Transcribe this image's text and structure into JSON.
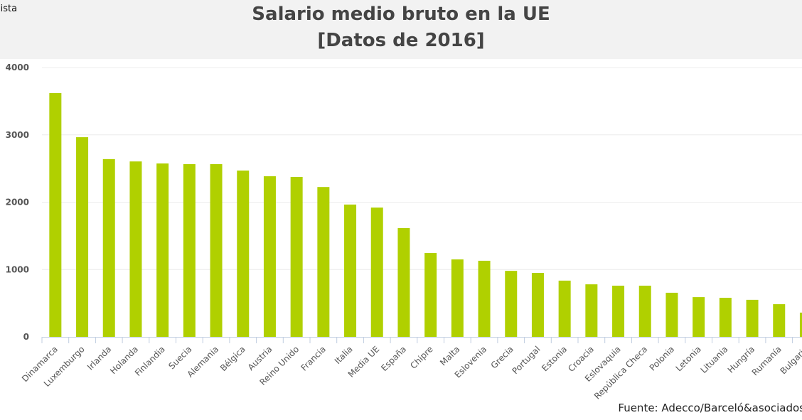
{
  "header": {
    "corner_text": "lista"
  },
  "chart_data": {
    "type": "bar",
    "title": "Salario medio bruto en la UE",
    "subtitle": "[Datos de 2016]",
    "xlabel": "",
    "ylabel": "",
    "ylim": [
      0,
      4000
    ],
    "yticks": [
      0,
      1000,
      2000,
      3000,
      4000
    ],
    "grid": true,
    "bar_color": "#b0d000",
    "categories": [
      "Dinamarca",
      "Luxemburgo",
      "Irlanda",
      "Holanda",
      "Finlandia",
      "Suecia",
      "Alemania",
      "Bélgica",
      "Austria",
      "Reino Unido",
      "Francia",
      "Italia",
      "Media UE",
      "España",
      "Chipre",
      "Malta",
      "Eslovenia",
      "Grecia",
      "Portugal",
      "Estonia",
      "Croacia",
      "Eslovaquia",
      "República Checa",
      "Polonia",
      "Letonia",
      "Lituania",
      "Hungría",
      "Rumanía",
      "Bulgaria"
    ],
    "values": [
      3620,
      2965,
      2640,
      2605,
      2575,
      2565,
      2565,
      2470,
      2385,
      2375,
      2225,
      1965,
      1920,
      1615,
      1245,
      1150,
      1130,
      980,
      950,
      835,
      780,
      760,
      760,
      655,
      590,
      580,
      550,
      485,
      360
    ],
    "source": "Fuente: Adecco/Barceló&asociados"
  }
}
